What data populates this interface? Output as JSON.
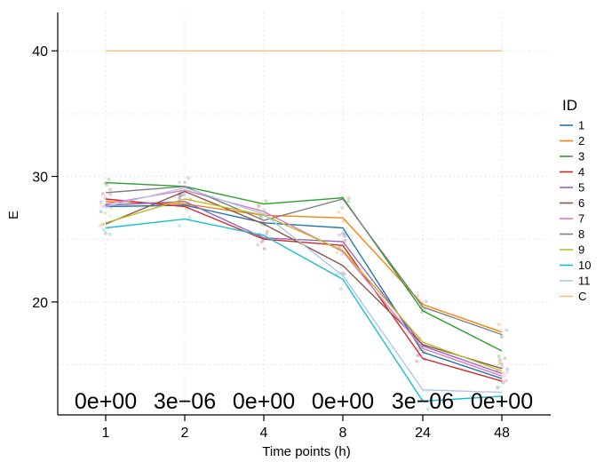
{
  "chart_data": {
    "type": "line",
    "xlabel": "Time points (h)",
    "ylabel": "E",
    "categories": [
      "1",
      "2",
      "4",
      "8",
      "24",
      "48"
    ],
    "yticks": [
      "20",
      "30",
      "40"
    ],
    "ylim": [
      11.5,
      41.5
    ],
    "grid": true,
    "legend": {
      "title": "ID",
      "position": "right"
    },
    "annotations": [
      "0e+00",
      "3e−06",
      "0e+00",
      "0e+00",
      "3e−06",
      "0e+00"
    ],
    "series": [
      {
        "name": "1",
        "color": "#1f77b4",
        "values": [
          27.6,
          27.7,
          26.3,
          25.9,
          16.0,
          13.9
        ]
      },
      {
        "name": "2",
        "color": "#ff7f0e",
        "values": [
          28.0,
          27.8,
          26.9,
          26.7,
          19.8,
          17.6
        ]
      },
      {
        "name": "3",
        "color": "#2ca02c",
        "values": [
          29.5,
          29.2,
          27.8,
          28.3,
          19.3,
          16.1
        ]
      },
      {
        "name": "4",
        "color": "#d62728",
        "values": [
          28.2,
          27.6,
          25.0,
          24.5,
          15.5,
          13.7
        ]
      },
      {
        "name": "5",
        "color": "#9467bd",
        "values": [
          27.7,
          28.0,
          25.1,
          24.8,
          16.5,
          14.3
        ]
      },
      {
        "name": "6",
        "color": "#8c564b",
        "values": [
          26.2,
          28.8,
          26.2,
          22.9,
          16.6,
          14.7
        ]
      },
      {
        "name": "7",
        "color": "#e377c2",
        "values": [
          27.8,
          28.9,
          27.2,
          24.0,
          16.3,
          14.1
        ]
      },
      {
        "name": "8",
        "color": "#7f7f7f",
        "values": [
          28.7,
          29.2,
          26.5,
          28.2,
          19.6,
          17.4
        ]
      },
      {
        "name": "9",
        "color": "#bcbd22",
        "values": [
          26.3,
          28.2,
          26.9,
          24.1,
          16.8,
          14.5
        ]
      },
      {
        "name": "10",
        "color": "#17becf",
        "values": [
          25.9,
          26.6,
          25.3,
          21.8,
          12.1,
          12.5
        ]
      },
      {
        "name": "11",
        "color": "#aec7e8",
        "values": [
          27.6,
          29.1,
          27.0,
          22.1,
          13.0,
          12.8
        ]
      },
      {
        "name": "C",
        "color": "#ffbb78",
        "values": [
          40.0,
          40.0,
          40.0,
          40.0,
          40.0,
          40.0
        ]
      }
    ]
  }
}
